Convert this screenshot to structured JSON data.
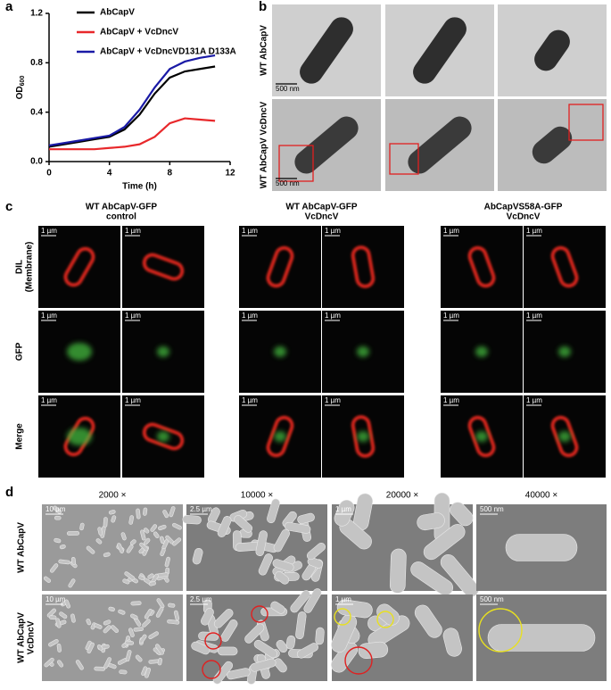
{
  "panel_labels": [
    "a",
    "b",
    "c",
    "d"
  ],
  "chart_data": {
    "type": "line",
    "x": [
      0,
      1,
      2,
      3,
      4,
      5,
      6,
      7,
      8,
      9,
      10,
      11
    ],
    "series": [
      {
        "name": "AbCapV",
        "color": "#000000",
        "values": [
          0.12,
          0.14,
          0.16,
          0.18,
          0.2,
          0.26,
          0.38,
          0.55,
          0.68,
          0.73,
          0.75,
          0.77
        ]
      },
      {
        "name": "AbCapV + VcDncV",
        "color": "#e8282b",
        "values": [
          0.1,
          0.1,
          0.1,
          0.1,
          0.11,
          0.12,
          0.14,
          0.2,
          0.31,
          0.35,
          0.34,
          0.33
        ]
      },
      {
        "name": "AbCapV + VcDncVD131A D133A",
        "color": "#1a1aa6",
        "values": [
          0.13,
          0.15,
          0.17,
          0.19,
          0.21,
          0.28,
          0.42,
          0.6,
          0.75,
          0.81,
          0.84,
          0.86
        ]
      }
    ],
    "xlim": [
      0,
      12
    ],
    "ylim": [
      0,
      1.2
    ],
    "xticks": [
      0,
      4,
      8,
      12
    ],
    "yticks": [
      {
        "value": 0,
        "label": "0.0"
      },
      0.4,
      0.8,
      1.2
    ],
    "x_label": "Time (h)",
    "y_label": "OD",
    "y_label_subscript": "600"
  },
  "panel_b": {
    "rows": [
      "WT AbCapV",
      "WT AbCapV VcDncV"
    ],
    "scale_bar": "500 nm"
  },
  "panel_c": {
    "columns": [
      [
        "WT AbCapV-GFP",
        "control"
      ],
      [
        "WT AbCapV-GFP",
        "VcDncV"
      ],
      [
        "AbCapVS58A-GFP",
        "VcDncV"
      ]
    ],
    "rows": [
      [
        "DIL",
        "(Membrane)"
      ],
      [
        "GFP"
      ],
      [
        "Merge"
      ]
    ],
    "scale_bar": "1 µm"
  },
  "panel_d": {
    "columns": [
      "2000 ×",
      "10000 ×",
      "20000 ×",
      "40000 ×"
    ],
    "rows": [
      [
        "WT AbCapV"
      ],
      [
        "WT AbCapV",
        "VcDncV"
      ]
    ],
    "scale_bars": [
      "10 µm",
      "2.5 µm",
      "1 µm",
      "500 nm"
    ]
  }
}
